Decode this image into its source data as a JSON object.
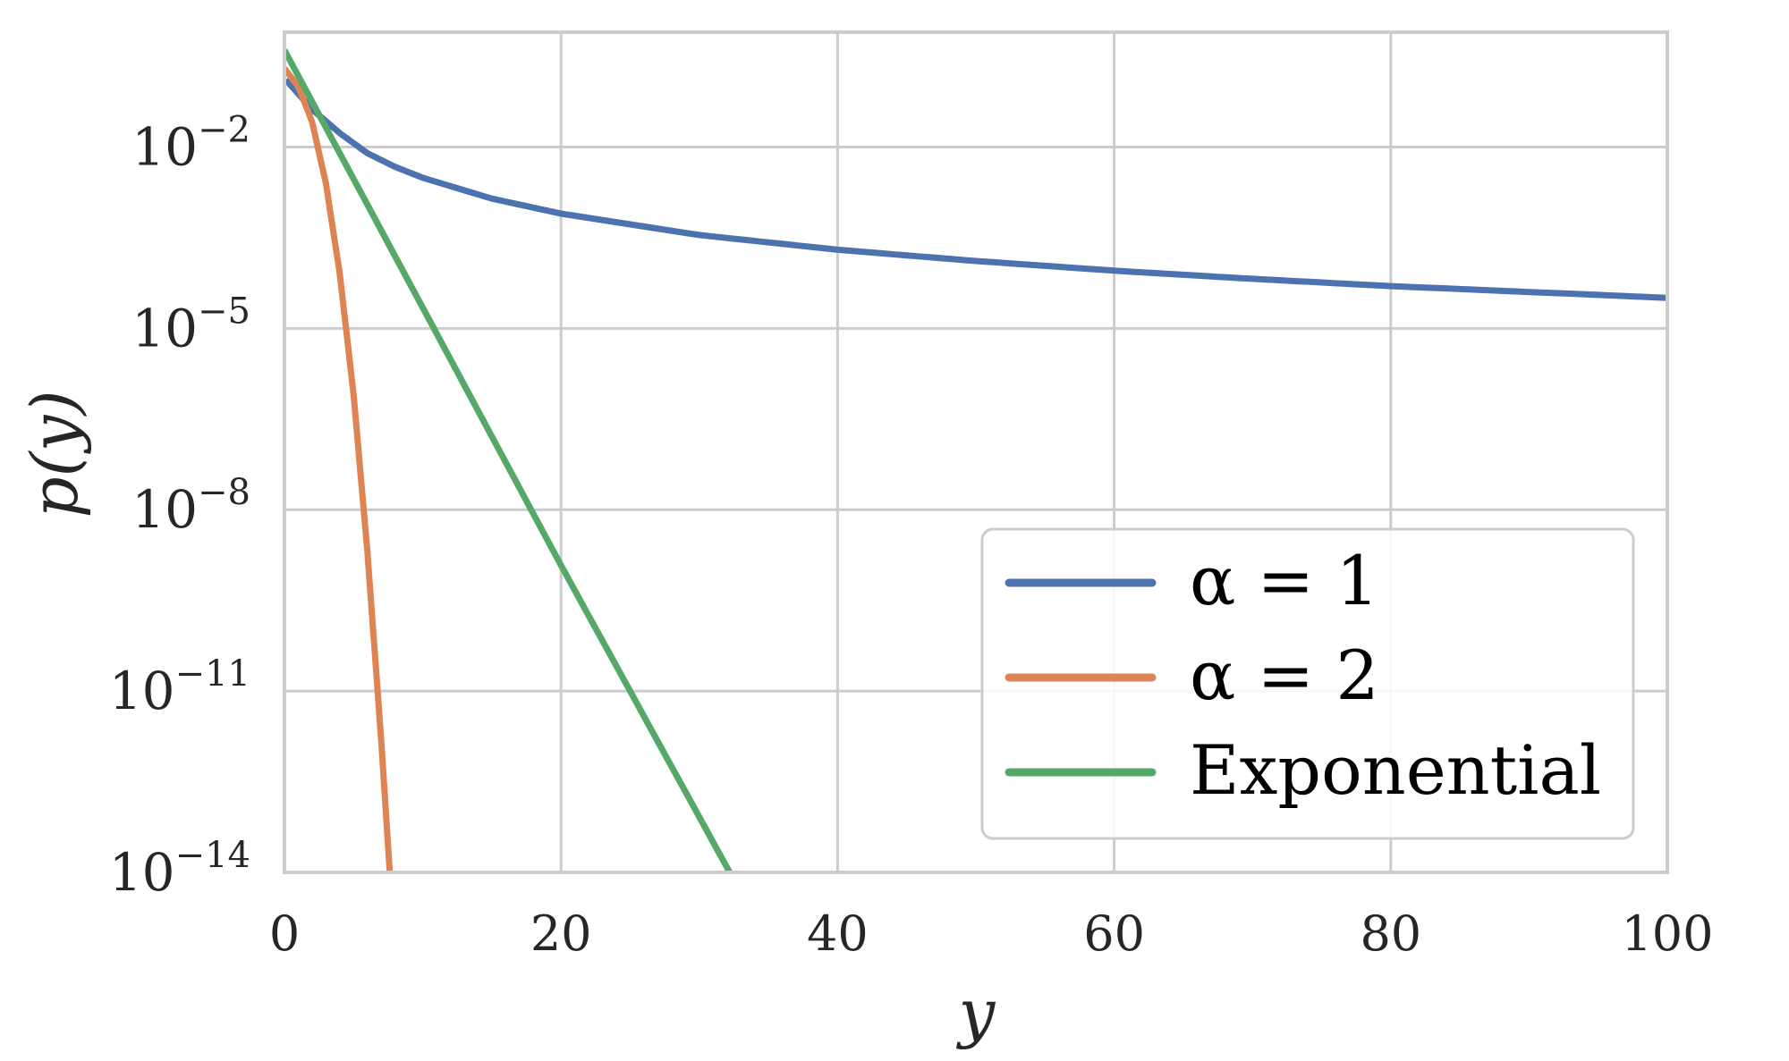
{
  "chart_data": {
    "type": "line",
    "title": "",
    "xlabel": "y",
    "ylabel": "p(y)",
    "xlim": [
      0,
      100
    ],
    "ylim_log10": [
      -14,
      -0.1
    ],
    "yscale": "log",
    "grid": true,
    "legend_position": "lower-right",
    "x_ticks": [
      0,
      20,
      40,
      60,
      80,
      100
    ],
    "x_tick_labels": [
      "0",
      "20",
      "40",
      "60",
      "80",
      "100"
    ],
    "y_ticks_log10": [
      -2,
      -5,
      -8,
      -11,
      -14
    ],
    "y_tick_labels": [
      {
        "base": "10",
        "exp": "−2"
      },
      {
        "base": "10",
        "exp": "−5"
      },
      {
        "base": "10",
        "exp": "−8"
      },
      {
        "base": "10",
        "exp": "−11"
      },
      {
        "base": "10",
        "exp": "−14"
      }
    ],
    "series": [
      {
        "name": "α = 1",
        "color": "#4c72b0",
        "x": [
          0.1,
          2,
          4,
          6,
          8,
          10,
          15,
          20,
          30,
          40,
          50,
          60,
          70,
          80,
          90,
          100
        ],
        "y": [
          0.13,
          0.042,
          0.017,
          0.0079,
          0.0047,
          0.0031,
          0.0014,
          0.00079,
          0.00035,
          0.0002,
          0.00013,
          9e-05,
          6.6e-05,
          5e-05,
          4e-05,
          3.2e-05
        ]
      },
      {
        "name": "α = 2",
        "color": "#dd8452",
        "x": [
          0,
          1,
          2,
          3,
          4,
          5,
          6,
          7,
          7.9
        ],
        "y": [
          0.2,
          0.1,
          0.026,
          0.0025,
          8e-05,
          8e-07,
          2e-09,
          1.5e-12,
          1e-15
        ]
      },
      {
        "name": "Exponential",
        "color": "#55a868",
        "x": [
          0,
          10,
          20,
          32.2
        ],
        "y": [
          0.4,
          2.2e-05,
          1.2e-09,
          1e-14
        ]
      }
    ]
  }
}
